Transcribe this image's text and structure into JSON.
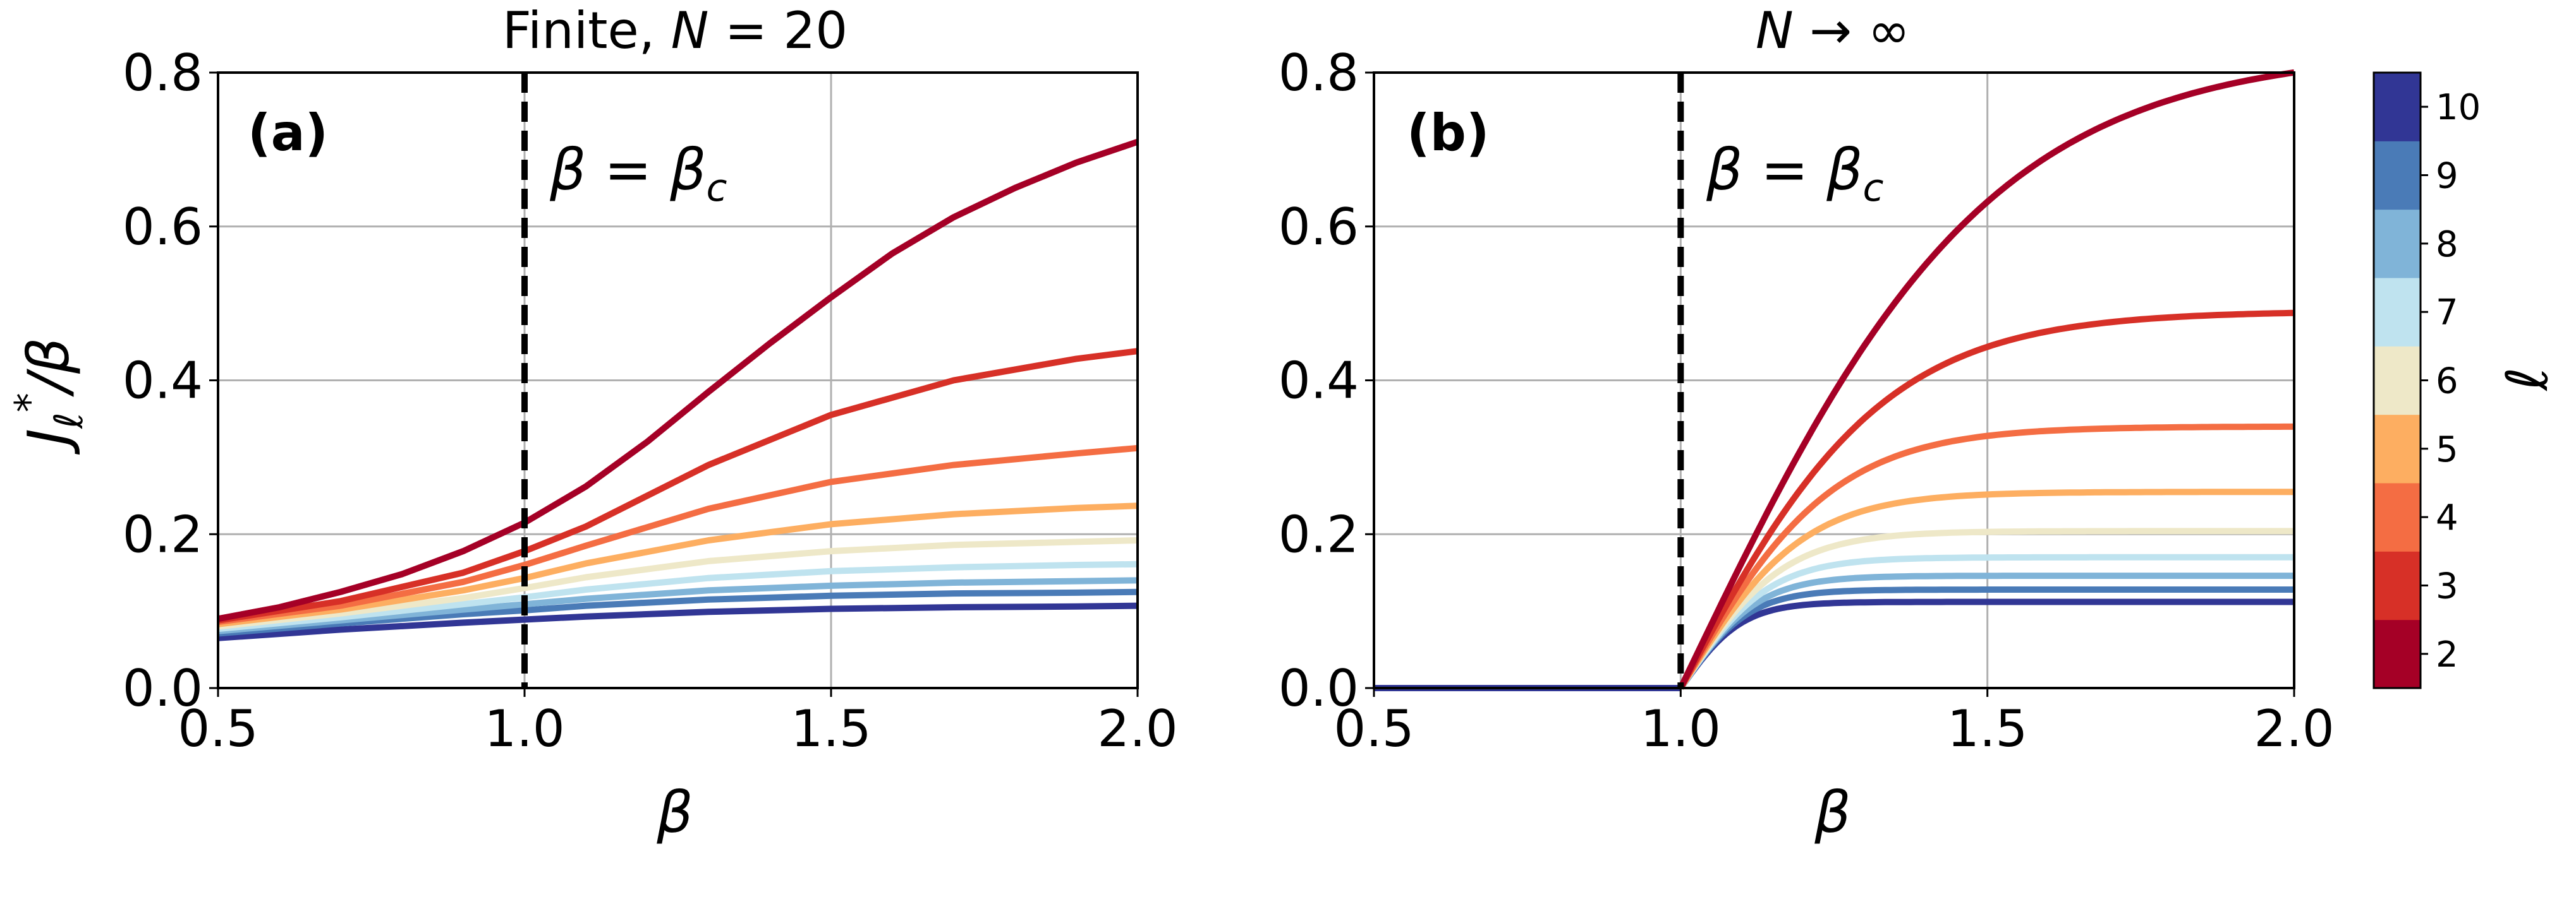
{
  "chart_data": [
    {
      "type": "line",
      "panel_label": "(a)",
      "title": "Finite, N = 20",
      "xlabel": "β",
      "ylabel": "J_ℓ*/β",
      "xlim": [
        0.5,
        2.0
      ],
      "ylim": [
        0.0,
        0.8
      ],
      "xticks": [
        "0.5",
        "1.0",
        "1.5",
        "2.0"
      ],
      "yticks": [
        "0.0",
        "0.2",
        "0.4",
        "0.6",
        "0.8"
      ],
      "grid": true,
      "vline": {
        "x": 1.0,
        "label": "β = β_c"
      },
      "series": [
        {
          "l": 2,
          "x": [
            0.5,
            0.6,
            0.7,
            0.8,
            0.9,
            1.0,
            1.1,
            1.2,
            1.3,
            1.4,
            1.5,
            1.6,
            1.7,
            1.8,
            1.9,
            2.0
          ],
          "y": [
            0.09,
            0.105,
            0.125,
            0.148,
            0.178,
            0.215,
            0.262,
            0.32,
            0.385,
            0.448,
            0.508,
            0.565,
            0.612,
            0.65,
            0.683,
            0.71
          ]
        },
        {
          "l": 3,
          "x": [
            0.5,
            0.7,
            0.9,
            1.0,
            1.1,
            1.3,
            1.5,
            1.7,
            1.9,
            2.0
          ],
          "y": [
            0.088,
            0.113,
            0.15,
            0.178,
            0.21,
            0.29,
            0.355,
            0.4,
            0.428,
            0.438
          ]
        },
        {
          "l": 4,
          "x": [
            0.5,
            0.7,
            0.9,
            1.0,
            1.1,
            1.3,
            1.5,
            1.7,
            1.9,
            2.0
          ],
          "y": [
            0.086,
            0.107,
            0.138,
            0.16,
            0.185,
            0.233,
            0.268,
            0.29,
            0.305,
            0.312
          ]
        },
        {
          "l": 5,
          "x": [
            0.5,
            0.7,
            0.9,
            1.0,
            1.1,
            1.3,
            1.5,
            1.7,
            1.9,
            2.0
          ],
          "y": [
            0.083,
            0.102,
            0.127,
            0.143,
            0.162,
            0.192,
            0.213,
            0.226,
            0.234,
            0.237
          ]
        },
        {
          "l": 6,
          "x": [
            0.5,
            0.7,
            0.9,
            1.0,
            1.1,
            1.3,
            1.5,
            1.7,
            1.9,
            2.0
          ],
          "y": [
            0.08,
            0.097,
            0.117,
            0.13,
            0.144,
            0.165,
            0.178,
            0.186,
            0.19,
            0.192
          ]
        },
        {
          "l": 7,
          "x": [
            0.5,
            0.7,
            0.9,
            1.0,
            1.1,
            1.3,
            1.5,
            1.7,
            1.9,
            2.0
          ],
          "y": [
            0.077,
            0.092,
            0.109,
            0.118,
            0.128,
            0.143,
            0.152,
            0.157,
            0.16,
            0.161
          ]
        },
        {
          "l": 8,
          "x": [
            0.5,
            0.7,
            0.9,
            1.0,
            1.1,
            1.3,
            1.5,
            1.7,
            1.9,
            2.0
          ],
          "y": [
            0.074,
            0.088,
            0.102,
            0.109,
            0.116,
            0.127,
            0.133,
            0.137,
            0.139,
            0.14
          ]
        },
        {
          "l": 9,
          "x": [
            0.5,
            0.7,
            0.9,
            1.0,
            1.1,
            1.3,
            1.5,
            1.7,
            1.9,
            2.0
          ],
          "y": [
            0.071,
            0.084,
            0.096,
            0.101,
            0.107,
            0.115,
            0.12,
            0.123,
            0.124,
            0.125
          ]
        },
        {
          "l": 10,
          "x": [
            0.5,
            0.7,
            0.9,
            1.0,
            1.1,
            1.3,
            1.5,
            1.7,
            1.9,
            2.0
          ],
          "y": [
            0.065,
            0.076,
            0.085,
            0.089,
            0.093,
            0.099,
            0.103,
            0.105,
            0.106,
            0.107
          ]
        }
      ]
    },
    {
      "type": "line",
      "panel_label": "(b)",
      "title": "N → ∞",
      "xlabel": "β",
      "xlim": [
        0.5,
        2.0
      ],
      "ylim": [
        0.0,
        0.8
      ],
      "xticks": [
        "0.5",
        "1.0",
        "1.5",
        "2.0"
      ],
      "yticks": [
        "0.0",
        "0.2",
        "0.4",
        "0.6",
        "0.8"
      ],
      "grid": true,
      "vline": {
        "x": 1.0,
        "label": "β = β_c"
      },
      "flat_segment": {
        "x": [
          0.5,
          1.0
        ],
        "y": 0.0
      },
      "series": [
        {
          "l": 2,
          "asymptote": 0.83,
          "rate": 2.0
        },
        {
          "l": 3,
          "asymptote": 0.49,
          "rate": 3.0
        },
        {
          "l": 4,
          "asymptote": 0.34,
          "rate": 4.0
        },
        {
          "l": 5,
          "asymptote": 0.255,
          "rate": 5.0
        },
        {
          "l": 6,
          "asymptote": 0.204,
          "rate": 6.0
        },
        {
          "l": 7,
          "asymptote": 0.17,
          "rate": 7.0
        },
        {
          "l": 8,
          "asymptote": 0.146,
          "rate": 8.0
        },
        {
          "l": 9,
          "asymptote": 0.128,
          "rate": 9.0
        },
        {
          "l": 10,
          "asymptote": 0.112,
          "rate": 10.0
        }
      ]
    }
  ],
  "colorbar": {
    "label": "ℓ",
    "ticks": [
      "2",
      "3",
      "4",
      "5",
      "6",
      "7",
      "8",
      "9",
      "10"
    ],
    "colors": [
      "#a50026",
      "#d73027",
      "#f46d43",
      "#fdae61",
      "#eee8c8",
      "#bfe3ef",
      "#80b4d8",
      "#4a7bb7",
      "#313695"
    ]
  },
  "labels": {
    "title_a_prefix": "Finite, ",
    "title_a_var": "N",
    "title_a_suffix": " = 20",
    "title_b": "N → ∞",
    "ylabel_main": "J",
    "ylabel_sub": "ℓ",
    "ylabel_sup": "*",
    "ylabel_tail": "/β",
    "ann_beta": "β = β",
    "ann_sub": "c",
    "cbar_label": "ℓ"
  }
}
